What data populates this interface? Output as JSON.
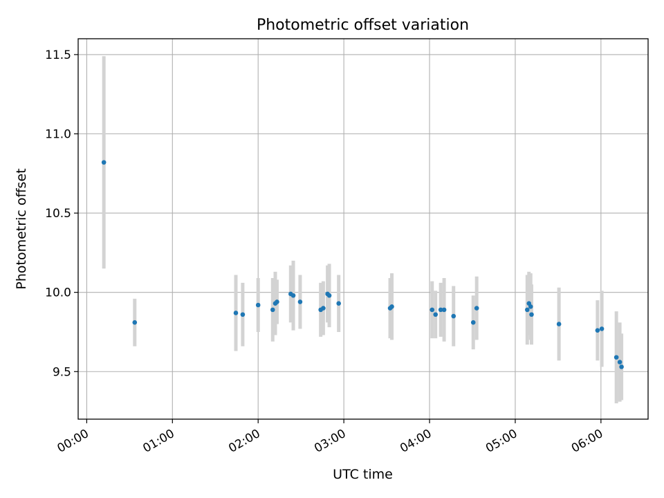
{
  "chart_data": {
    "type": "scatter",
    "title": "Photometric offset variation",
    "xlabel": "UTC time",
    "ylabel": "Photometric offset",
    "x_unit": "hours",
    "xlim": [
      -0.1,
      6.55
    ],
    "ylim": [
      9.2,
      11.6
    ],
    "x_ticks": [
      {
        "value": 0,
        "label": "00:00"
      },
      {
        "value": 1,
        "label": "01:00"
      },
      {
        "value": 2,
        "label": "02:00"
      },
      {
        "value": 3,
        "label": "03:00"
      },
      {
        "value": 4,
        "label": "04:00"
      },
      {
        "value": 5,
        "label": "05:00"
      },
      {
        "value": 6,
        "label": "06:00"
      }
    ],
    "y_ticks": [
      {
        "value": 9.5,
        "label": "9.5"
      },
      {
        "value": 10.0,
        "label": "10.0"
      },
      {
        "value": 10.5,
        "label": "10.5"
      },
      {
        "value": 11.0,
        "label": "11.0"
      },
      {
        "value": 11.5,
        "label": "11.5"
      }
    ],
    "grid": true,
    "colors": {
      "points": "#1f77b4",
      "errorbars": "#d3d3d3",
      "grid": "#b0b0b0"
    },
    "points": [
      {
        "x": 0.2,
        "y": 10.82,
        "err": 0.67
      },
      {
        "x": 0.56,
        "y": 9.81,
        "err": 0.15
      },
      {
        "x": 1.74,
        "y": 9.87,
        "err": 0.24
      },
      {
        "x": 1.82,
        "y": 9.86,
        "err": 0.2
      },
      {
        "x": 2.0,
        "y": 9.92,
        "err": 0.17
      },
      {
        "x": 2.17,
        "y": 9.89,
        "err": 0.2
      },
      {
        "x": 2.2,
        "y": 9.93,
        "err": 0.2
      },
      {
        "x": 2.22,
        "y": 9.94,
        "err": 0.14
      },
      {
        "x": 2.38,
        "y": 9.99,
        "err": 0.18
      },
      {
        "x": 2.41,
        "y": 9.98,
        "err": 0.22
      },
      {
        "x": 2.49,
        "y": 9.94,
        "err": 0.17
      },
      {
        "x": 2.73,
        "y": 9.89,
        "err": 0.17
      },
      {
        "x": 2.76,
        "y": 9.9,
        "err": 0.17
      },
      {
        "x": 2.81,
        "y": 9.99,
        "err": 0.18
      },
      {
        "x": 2.83,
        "y": 9.98,
        "err": 0.2
      },
      {
        "x": 2.94,
        "y": 9.93,
        "err": 0.18
      },
      {
        "x": 3.54,
        "y": 9.9,
        "err": 0.19
      },
      {
        "x": 3.56,
        "y": 9.91,
        "err": 0.21
      },
      {
        "x": 4.03,
        "y": 9.89,
        "err": 0.18
      },
      {
        "x": 4.07,
        "y": 9.86,
        "err": 0.15
      },
      {
        "x": 4.13,
        "y": 9.89,
        "err": 0.17
      },
      {
        "x": 4.17,
        "y": 9.89,
        "err": 0.2
      },
      {
        "x": 4.28,
        "y": 9.85,
        "err": 0.19
      },
      {
        "x": 4.51,
        "y": 9.81,
        "err": 0.17
      },
      {
        "x": 4.55,
        "y": 9.9,
        "err": 0.2
      },
      {
        "x": 5.14,
        "y": 9.89,
        "err": 0.22
      },
      {
        "x": 5.16,
        "y": 9.93,
        "err": 0.2
      },
      {
        "x": 5.18,
        "y": 9.91,
        "err": 0.21
      },
      {
        "x": 5.19,
        "y": 9.86,
        "err": 0.19
      },
      {
        "x": 5.51,
        "y": 9.8,
        "err": 0.23
      },
      {
        "x": 5.96,
        "y": 9.76,
        "err": 0.19
      },
      {
        "x": 6.01,
        "y": 9.77,
        "err": 0.24
      },
      {
        "x": 6.18,
        "y": 9.59,
        "err": 0.29
      },
      {
        "x": 6.22,
        "y": 9.56,
        "err": 0.25
      },
      {
        "x": 6.24,
        "y": 9.53,
        "err": 0.21
      }
    ]
  }
}
